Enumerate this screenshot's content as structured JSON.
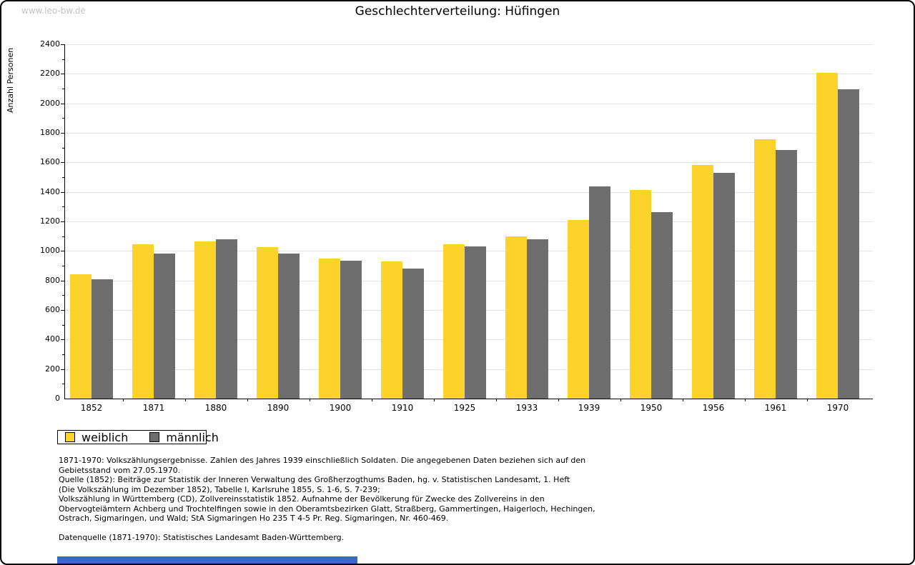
{
  "page": {
    "watermark": "www.leo-bw.de",
    "title": "Geschlechterverteilung: Hüfingen"
  },
  "chart_data": {
    "type": "bar",
    "title": "Geschlechterverteilung: Hüfingen",
    "xlabel": "",
    "ylabel": "Anzahl Personen",
    "categories": [
      "1852",
      "1871",
      "1880",
      "1890",
      "1900",
      "1910",
      "1925",
      "1933",
      "1939",
      "1950",
      "1956",
      "1961",
      "1970"
    ],
    "series": [
      {
        "name": "weiblich",
        "color": "#fcd22b",
        "values": [
          840,
          1045,
          1065,
          1025,
          950,
          930,
          1045,
          1100,
          1210,
          1415,
          1580,
          1755,
          2205
        ]
      },
      {
        "name": "männlich",
        "color": "#6e6e6e",
        "values": [
          810,
          980,
          1080,
          980,
          935,
          880,
          1030,
          1080,
          1435,
          1265,
          1530,
          1685,
          2095
        ]
      }
    ],
    "ylim": [
      0,
      2400
    ],
    "ytick_major": 200,
    "ytick_minor": 100,
    "grid": true,
    "legend_position": "bottom-left"
  },
  "footnotes": {
    "lines": [
      "1871-1970: Volkszählungsergebnisse. Zahlen des Jahres 1939 einschließlich Soldaten. Die angegebenen Daten beziehen sich auf den",
      "Gebietsstand vom 27.05.1970.",
      "Quelle (1852): Beiträge zur Statistik der Inneren Verwaltung des Großherzogthums Baden, hg. v. Statistischen Landesamt, 1. Heft",
      "(Die Volkszählung im Dezember 1852), Tabelle I, Karlsruhe 1855, S. 1-6, S. 7-239;",
      "Volkszählung in Württemberg (CD), Zollvereinsstatistik 1852. Aufnahme der Bevölkerung für Zwecke des Zollvereins in den",
      "Obervogteiämtern Achberg und Trochtelfingen sowie in den Oberamtsbezirken Glatt, Straßberg, Gammertingen, Haigerloch, Hechingen,",
      "Ostrach, Sigmaringen, und Wald; StA Sigmaringen Ho 235 T 4-5 Pr. Reg. Sigmaringen, Nr. 460-469.",
      "",
      "Datenquelle (1871-1970): Statistisches Landesamt Baden-Württemberg."
    ]
  },
  "colors": {
    "grid": "#e3e3e3",
    "watermark": "#c4c4c4",
    "bottom_bar_blue": "#3b68c5"
  }
}
